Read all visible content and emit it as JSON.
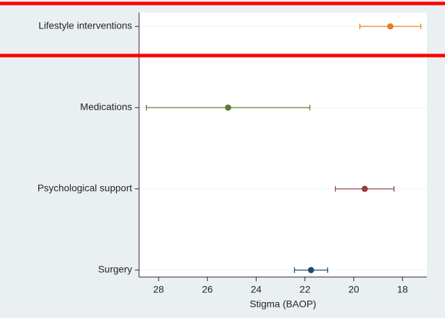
{
  "chart_data": {
    "type": "dot",
    "categories": [
      "Lifestyle interventions",
      "Medications",
      "Psychological support",
      "Surgery"
    ],
    "values": [
      18.5,
      25.15,
      19.55,
      21.75
    ],
    "errors": [
      1.25,
      3.35,
      1.2,
      0.68
    ],
    "colors": [
      "#e0801e",
      "#5b7a32",
      "#963c3c",
      "#1f4a72"
    ],
    "x_label": "Stigma (BAOP)",
    "xlim": [
      28.8,
      17
    ],
    "xticks": [
      28,
      26,
      24,
      22,
      20,
      18
    ],
    "grid": true
  }
}
